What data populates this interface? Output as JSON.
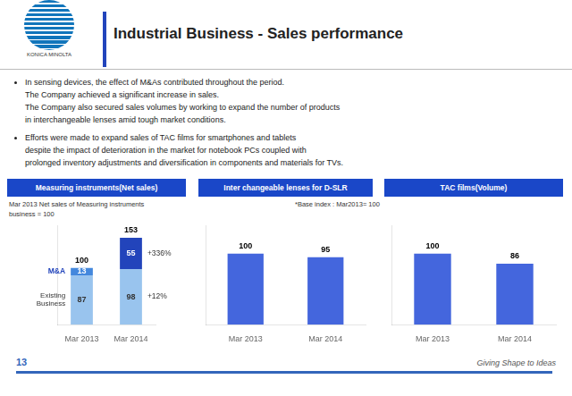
{
  "title": "Industrial Business - Sales performance",
  "annotations": [
    "KONICA MINOLTA",
    "In sensing devices, the effect of M&As contributed throughout the period.\nThe Company achieved a significant increase in sales.\nThe Company also secured sales volumes by working to expand the number of products\nin interchangeable lenses amid tough market conditions.",
    "Efforts were made to expand sales of TAC films for smartphones and tablets\ndespite the impact of deterioration in the market for notebook PCs coupled with\nprolonged inventory adjustments and diversification in components and materials for TVs.",
    "Mar 2013 Net sales of Measuring instruments\nbusiness = 100",
    "*Base index :  Mar2013= 100",
    "13",
    "Giving Shape to Ideas"
  ],
  "chart_data": [
    {
      "type": "bar",
      "title": "Measuring instruments(Net sales)",
      "categories": [
        "Mar 2013",
        "Mar 2014"
      ],
      "series": [
        {
          "name": "Existing\nBusiness",
          "values": [
            87,
            98
          ],
          "colors": [
            "#99C4EE",
            "#99C4EE"
          ]
        },
        {
          "name": "M&A",
          "values": [
            13,
            55
          ],
          "colors": [
            "#4488DD",
            "#2244BB"
          ]
        }
      ],
      "totals": [
        100,
        153
      ],
      "annotations": [
        "+336%",
        "+12%"
      ],
      "stacked": true,
      "data_labels": true,
      "ylim": [
        0,
        175
      ],
      "grid": false,
      "tick_labels": "x",
      "legend": false
    },
    {
      "type": "bar",
      "title": "Inter changeable lenses for D-SLR",
      "categories": [
        "Mar 2013",
        "Mar 2014"
      ],
      "values": [
        100,
        95
      ],
      "color": "#4466DD",
      "data_labels": true,
      "ylim": [
        0,
        140
      ],
      "grid": false,
      "tick_labels": "x",
      "legend": false
    },
    {
      "type": "bar",
      "title": "TAC films(Volume)",
      "categories": [
        "Mar 2013",
        "Mar 2014"
      ],
      "values": [
        100,
        86
      ],
      "color": "#4466DD",
      "data_labels": true,
      "ylim": [
        0,
        140
      ],
      "grid": false,
      "tick_labels": "x",
      "legend": false
    }
  ]
}
